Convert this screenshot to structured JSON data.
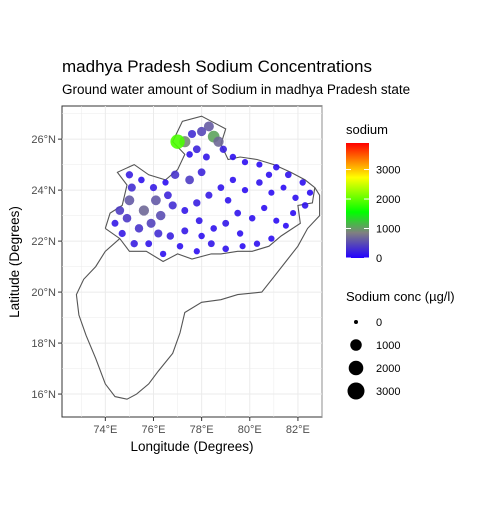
{
  "chart_data": {
    "type": "scatter",
    "title": "madhya Pradesh Sodium Concentrations",
    "subtitle": "Ground water amount of Sodium in madhya Pradesh state",
    "xlabel": "Longitude (Degrees)",
    "ylabel": "Latitude (Degrees)",
    "xlim": [
      72.2,
      83.0
    ],
    "ylim": [
      15.1,
      27.3
    ],
    "x_ticks": [
      74,
      76,
      78,
      80,
      82
    ],
    "x_tick_labels": [
      "74°E",
      "76°E",
      "78°E",
      "80°E",
      "82°E"
    ],
    "y_ticks": [
      16,
      18,
      20,
      22,
      24,
      26
    ],
    "y_tick_labels": [
      "16°N",
      "18°N",
      "20°N",
      "22°N",
      "24°N",
      "26°N"
    ],
    "grid": true,
    "color_legend": {
      "title": "sodium",
      "breaks": [
        0,
        1000,
        2000,
        3000
      ],
      "labels": [
        "0",
        "1000",
        "2000",
        "3000"
      ],
      "range": [
        0,
        3900
      ],
      "colors": [
        "#2200ff",
        "#808080",
        "#00ff00",
        "#ffff00",
        "#ff0000"
      ]
    },
    "size_legend": {
      "title": "Sodium conc (µg/l)",
      "breaks": [
        0,
        1000,
        2000,
        3000
      ],
      "labels": [
        "0",
        "1000",
        "2000",
        "3000"
      ]
    },
    "state_boundary_lonlat": [
      [
        74.0,
        22.5
      ],
      [
        74.2,
        23.1
      ],
      [
        74.7,
        23.4
      ],
      [
        74.9,
        24.2
      ],
      [
        74.5,
        24.7
      ],
      [
        75.2,
        25.0
      ],
      [
        75.8,
        24.6
      ],
      [
        76.5,
        24.4
      ],
      [
        77.0,
        24.8
      ],
      [
        77.3,
        25.4
      ],
      [
        76.8,
        25.9
      ],
      [
        77.2,
        26.7
      ],
      [
        78.0,
        26.9
      ],
      [
        79.0,
        26.4
      ],
      [
        78.8,
        25.8
      ],
      [
        79.1,
        25.2
      ],
      [
        79.6,
        25.3
      ],
      [
        80.3,
        25.2
      ],
      [
        81.0,
        25.0
      ],
      [
        81.7,
        24.7
      ],
      [
        82.3,
        24.4
      ],
      [
        82.7,
        24.1
      ],
      [
        82.6,
        23.5
      ],
      [
        82.0,
        23.4
      ],
      [
        82.1,
        22.7
      ],
      [
        81.3,
        22.2
      ],
      [
        80.8,
        21.8
      ],
      [
        80.1,
        21.6
      ],
      [
        79.5,
        21.6
      ],
      [
        78.8,
        21.5
      ],
      [
        78.4,
        21.5
      ],
      [
        77.6,
        21.3
      ],
      [
        77.0,
        21.5
      ],
      [
        76.4,
        21.2
      ],
      [
        75.7,
        21.6
      ],
      [
        75.0,
        21.6
      ],
      [
        74.6,
        22.1
      ],
      [
        74.0,
        22.5
      ]
    ],
    "neighbor_boundary_lonlat": [
      [
        82.7,
        24.1
      ],
      [
        82.9,
        23.8
      ],
      [
        82.9,
        23.0
      ],
      [
        82.4,
        22.5
      ],
      [
        82.0,
        21.8
      ],
      [
        81.5,
        21.2
      ],
      [
        81.0,
        20.6
      ],
      [
        80.5,
        20.0
      ],
      [
        79.5,
        19.9
      ],
      [
        78.8,
        19.7
      ],
      [
        78.0,
        19.6
      ],
      [
        77.3,
        19.2
      ],
      [
        77.1,
        18.4
      ],
      [
        76.8,
        17.6
      ],
      [
        76.2,
        16.9
      ],
      [
        75.8,
        16.4
      ],
      [
        75.3,
        16.0
      ],
      [
        74.9,
        15.8
      ],
      [
        74.4,
        15.9
      ],
      [
        74.0,
        16.4
      ],
      [
        73.6,
        17.4
      ],
      [
        73.2,
        18.3
      ],
      [
        72.9,
        19.1
      ],
      [
        72.8,
        19.9
      ],
      [
        73.1,
        20.5
      ],
      [
        73.6,
        21.0
      ],
      [
        74.0,
        21.6
      ],
      [
        74.6,
        22.1
      ]
    ],
    "points": [
      [
        78.0,
        26.3,
        480
      ],
      [
        78.3,
        26.5,
        620
      ],
      [
        78.5,
        26.1,
        1050
      ],
      [
        77.6,
        26.2,
        300
      ],
      [
        77.3,
        25.9,
        900
      ],
      [
        77.0,
        25.9,
        1900
      ],
      [
        78.7,
        25.9,
        700
      ],
      [
        78.9,
        25.6,
        200
      ],
      [
        77.8,
        25.6,
        250
      ],
      [
        78.2,
        25.3,
        150
      ],
      [
        77.5,
        25.4,
        120
      ],
      [
        79.3,
        25.3,
        100
      ],
      [
        79.8,
        25.1,
        90
      ],
      [
        80.4,
        25.0,
        80
      ],
      [
        81.1,
        24.9,
        110
      ],
      [
        81.6,
        24.6,
        130
      ],
      [
        82.2,
        24.3,
        100
      ],
      [
        82.5,
        23.9,
        90
      ],
      [
        82.3,
        23.4,
        120
      ],
      [
        81.8,
        23.1,
        80
      ],
      [
        81.5,
        22.6,
        70
      ],
      [
        80.9,
        22.1,
        90
      ],
      [
        80.3,
        21.9,
        100
      ],
      [
        79.7,
        21.8,
        80
      ],
      [
        79.0,
        21.7,
        120
      ],
      [
        78.4,
        21.9,
        150
      ],
      [
        77.8,
        21.6,
        90
      ],
      [
        77.1,
        21.8,
        110
      ],
      [
        76.4,
        21.5,
        100
      ],
      [
        75.8,
        21.9,
        140
      ],
      [
        75.2,
        21.9,
        200
      ],
      [
        74.7,
        22.3,
        180
      ],
      [
        74.4,
        22.7,
        160
      ],
      [
        74.6,
        23.2,
        400
      ],
      [
        75.0,
        23.6,
        600
      ],
      [
        75.1,
        24.1,
        300
      ],
      [
        75.0,
        24.6,
        200
      ],
      [
        75.5,
        24.4,
        120
      ],
      [
        76.0,
        24.1,
        180
      ],
      [
        76.5,
        24.3,
        90
      ],
      [
        76.1,
        23.6,
        600
      ],
      [
        75.6,
        23.2,
        700
      ],
      [
        75.9,
        22.7,
        450
      ],
      [
        76.3,
        23.0,
        520
      ],
      [
        76.8,
        23.4,
        300
      ],
      [
        77.3,
        23.2,
        150
      ],
      [
        77.8,
        23.5,
        200
      ],
      [
        78.3,
        23.8,
        170
      ],
      [
        78.8,
        24.1,
        130
      ],
      [
        79.3,
        24.4,
        100
      ],
      [
        79.8,
        24.0,
        90
      ],
      [
        80.4,
        24.3,
        120
      ],
      [
        80.9,
        23.9,
        80
      ],
      [
        81.4,
        24.1,
        70
      ],
      [
        81.9,
        23.7,
        100
      ],
      [
        80.6,
        23.3,
        90
      ],
      [
        80.1,
        22.9,
        110
      ],
      [
        79.5,
        23.1,
        130
      ],
      [
        79.0,
        22.7,
        150
      ],
      [
        78.5,
        22.5,
        120
      ],
      [
        77.9,
        22.8,
        140
      ],
      [
        77.3,
        22.4,
        160
      ],
      [
        76.7,
        22.2,
        210
      ],
      [
        76.2,
        22.3,
        300
      ],
      [
        75.4,
        22.5,
        350
      ],
      [
        77.5,
        24.4,
        400
      ],
      [
        78.0,
        24.7,
        250
      ],
      [
        76.9,
        24.6,
        350
      ],
      [
        79.6,
        22.3,
        100
      ],
      [
        81.1,
        22.8,
        80
      ],
      [
        80.8,
        24.6,
        100
      ],
      [
        79.1,
        23.6,
        120
      ],
      [
        78.0,
        22.2,
        110
      ],
      [
        76.6,
        23.8,
        250
      ],
      [
        74.9,
        22.9,
        380
      ]
    ]
  }
}
